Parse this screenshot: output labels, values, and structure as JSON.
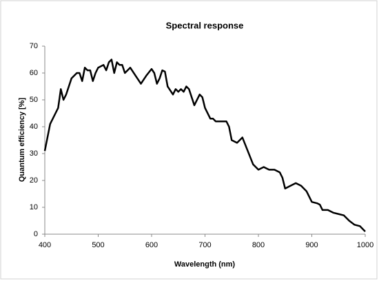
{
  "chart_data": {
    "type": "line",
    "title": "Spectral response",
    "x_label": "Wavelength (nm)",
    "y_label": "Quantum efficiency [%]",
    "x": [
      400,
      410,
      420,
      425,
      430,
      435,
      440,
      450,
      460,
      465,
      470,
      475,
      480,
      485,
      490,
      495,
      500,
      510,
      515,
      520,
      525,
      530,
      535,
      540,
      545,
      550,
      555,
      560,
      570,
      580,
      590,
      600,
      605,
      610,
      615,
      620,
      625,
      630,
      640,
      645,
      650,
      655,
      660,
      665,
      670,
      680,
      690,
      695,
      700,
      710,
      715,
      720,
      730,
      740,
      745,
      750,
      760,
      770,
      780,
      790,
      800,
      810,
      815,
      820,
      830,
      840,
      845,
      850,
      860,
      870,
      880,
      890,
      900,
      910,
      915,
      920,
      930,
      940,
      950,
      960,
      970,
      980,
      990,
      995,
      1000
    ],
    "series": [
      {
        "name": "Quantum efficiency",
        "color": "#000000",
        "values": [
          31,
          41,
          45,
          47,
          54,
          50,
          52,
          58,
          60,
          60,
          57,
          62,
          61,
          61,
          57,
          60,
          62,
          63,
          61,
          64,
          65,
          60,
          64,
          63,
          63,
          60,
          61,
          62,
          59,
          56,
          59,
          61.5,
          60,
          56,
          58,
          61,
          60.5,
          55,
          52,
          54,
          53,
          54,
          53,
          55,
          54,
          48,
          52,
          51,
          47,
          43,
          43,
          42,
          42,
          42,
          40,
          35,
          34,
          36,
          31,
          26,
          24,
          25,
          24.5,
          24,
          24,
          23,
          21,
          17,
          18,
          19,
          18,
          16,
          12,
          11.5,
          11,
          9,
          9,
          8,
          7.5,
          7,
          5,
          3.5,
          3,
          2,
          1
        ]
      }
    ],
    "xlim": [
      400,
      1000
    ],
    "xticks": [
      400,
      500,
      600,
      700,
      800,
      900,
      1000
    ],
    "ylim": [
      0,
      70
    ],
    "yticks": [
      0,
      10,
      20,
      30,
      40,
      50,
      60,
      70
    ],
    "grid": false
  }
}
